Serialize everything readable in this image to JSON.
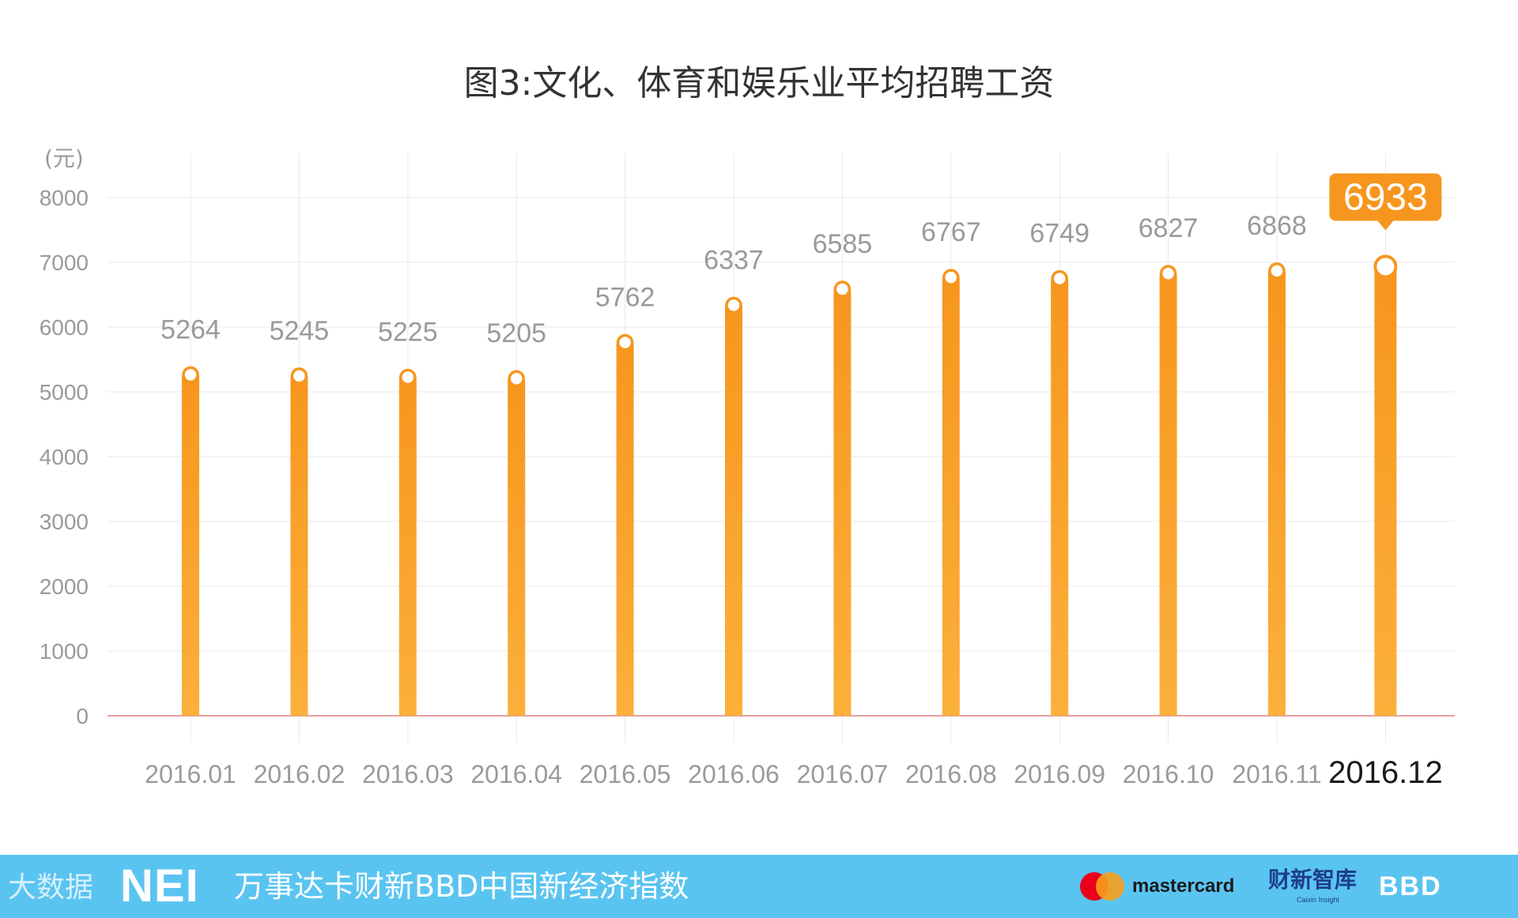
{
  "chart_data": {
    "type": "bar",
    "title": "图3:文化、体育和娱乐业平均招聘工资",
    "ylabel": "(元)",
    "categories": [
      "2016.01",
      "2016.02",
      "2016.03",
      "2016.04",
      "2016.05",
      "2016.06",
      "2016.07",
      "2016.08",
      "2016.09",
      "2016.10",
      "2016.11",
      "2016.12"
    ],
    "values": [
      5264,
      5245,
      5225,
      5205,
      5762,
      6337,
      6585,
      6767,
      6749,
      6827,
      6868,
      6933
    ],
    "yticks": [
      0,
      1000,
      2000,
      3000,
      4000,
      5000,
      6000,
      7000,
      8000
    ],
    "ylim": [
      0,
      8000
    ],
    "grid": true,
    "highlight_index": 11,
    "colors": {
      "bar": "#f7a12a",
      "highlight": "#f7a12a",
      "label": "#9a9a9a",
      "axis": "#e28080",
      "grid": "#e8e8e8"
    }
  },
  "footer": {
    "watermark": "大数据",
    "logo": "NEI",
    "text": "万事达卡财新BBD中国新经济指数",
    "mastercard": "mastercard",
    "caixin": "财新智库",
    "caixin_sub": "Caixin Insight",
    "bbd": "BBD",
    "background": "#5ac4f1"
  }
}
